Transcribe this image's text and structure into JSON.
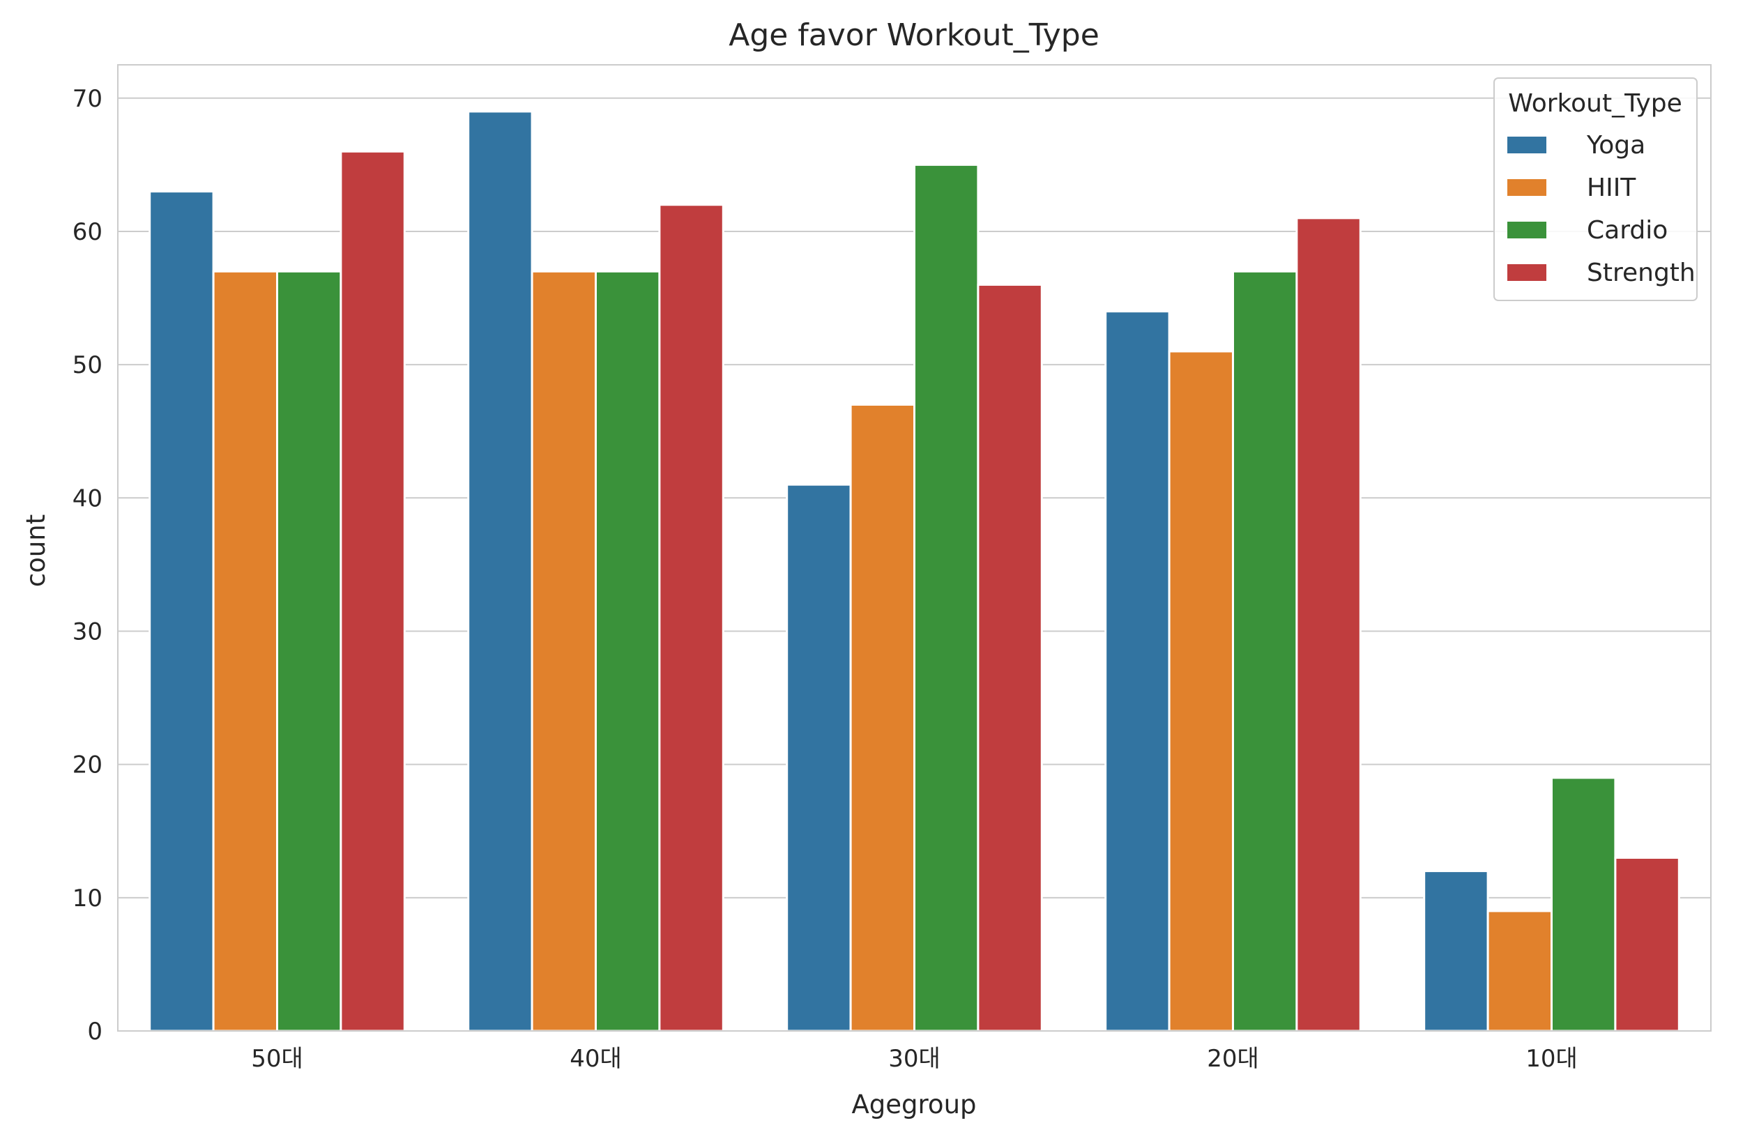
{
  "chart_data": {
    "type": "bar",
    "title": "Age favor Workout_Type",
    "xlabel": "Agegroup",
    "ylabel": "count",
    "categories": [
      "50대",
      "40대",
      "30대",
      "20대",
      "10대"
    ],
    "series": [
      {
        "name": "Yoga",
        "color": "#3274a1",
        "values": [
          63,
          69,
          41,
          54,
          12
        ]
      },
      {
        "name": "HIIT",
        "color": "#e1812c",
        "values": [
          57,
          57,
          47,
          51,
          9
        ]
      },
      {
        "name": "Cardio",
        "color": "#3a923a",
        "values": [
          57,
          57,
          65,
          57,
          19
        ]
      },
      {
        "name": "Strength",
        "color": "#c03d3e",
        "values": [
          66,
          62,
          56,
          61,
          13
        ]
      }
    ],
    "ylim": [
      0,
      72.5
    ],
    "yticks": [
      0,
      10,
      20,
      30,
      40,
      50,
      60,
      70
    ],
    "grid": "horizontal",
    "legend": {
      "title": "Workout_Type",
      "position": "top-right"
    }
  }
}
